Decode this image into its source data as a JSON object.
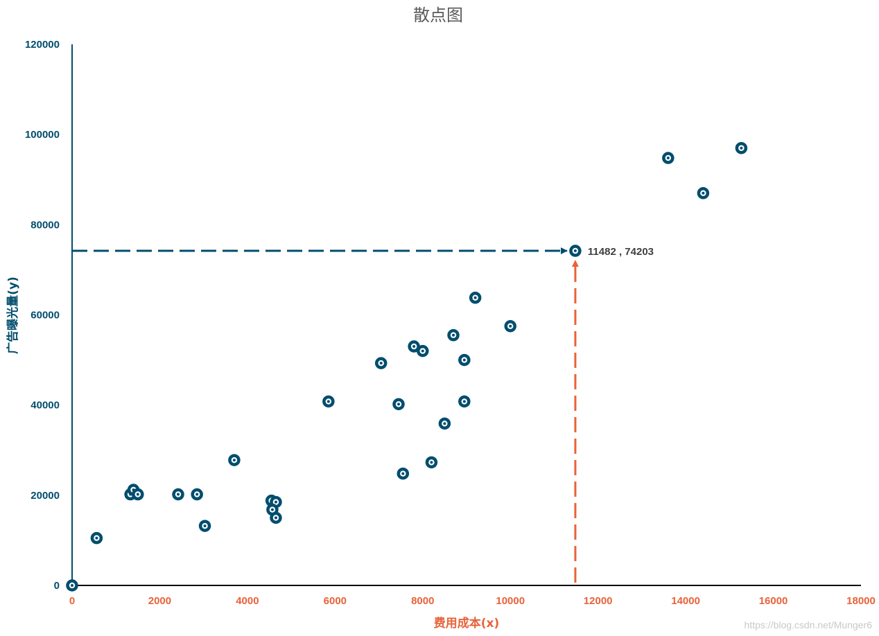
{
  "chart_data": {
    "type": "scatter",
    "title": "散点图",
    "xlabel": "费用成本(x)",
    "ylabel": "广告曝光量(y)",
    "xlim": [
      0,
      18000
    ],
    "ylim": [
      0,
      120000
    ],
    "x_ticks": [
      "0",
      "2000",
      "4000",
      "6000",
      "8000",
      "10000",
      "12000",
      "14000",
      "16000",
      "18000"
    ],
    "y_ticks": [
      "0",
      "20000",
      "40000",
      "60000",
      "80000",
      "100000",
      "120000"
    ],
    "grid": false,
    "colors": {
      "points": "#004d6d",
      "x_axis": "#e8623a",
      "y_axis": "#004d6d"
    },
    "points": [
      [
        0,
        0
      ],
      [
        560,
        10500
      ],
      [
        1330,
        20200
      ],
      [
        1400,
        21200
      ],
      [
        1500,
        20200
      ],
      [
        2420,
        20200
      ],
      [
        2850,
        20200
      ],
      [
        3030,
        13200
      ],
      [
        3700,
        27800
      ],
      [
        4550,
        18800
      ],
      [
        4650,
        18500
      ],
      [
        4570,
        16800
      ],
      [
        4650,
        15000
      ],
      [
        5850,
        40800
      ],
      [
        7050,
        49300
      ],
      [
        7450,
        40200
      ],
      [
        7550,
        24800
      ],
      [
        7800,
        53000
      ],
      [
        8000,
        52000
      ],
      [
        8200,
        27300
      ],
      [
        8500,
        35900
      ],
      [
        8700,
        55500
      ],
      [
        8950,
        50000
      ],
      [
        8950,
        40800
      ],
      [
        9200,
        63800
      ],
      [
        10000,
        57500
      ],
      [
        11482,
        74203
      ],
      [
        13600,
        94800
      ],
      [
        14400,
        87000
      ],
      [
        15270,
        97000
      ]
    ],
    "highlight": {
      "x": 11482,
      "y": 74203,
      "label": "11482 , 74203"
    }
  },
  "watermark": "https://blog.csdn.net/Munger6"
}
